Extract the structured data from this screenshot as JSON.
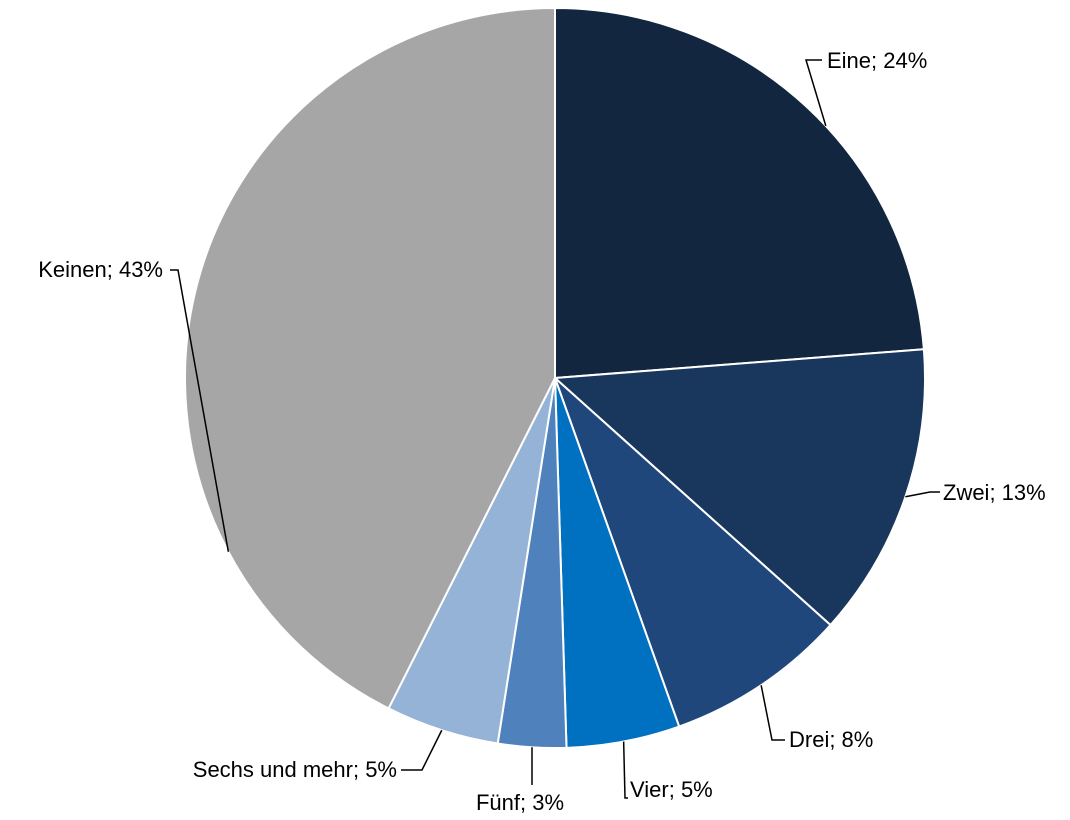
{
  "chart_data": {
    "type": "pie",
    "title": "",
    "separator": "; ",
    "slices": [
      {
        "label": "Eine",
        "value": 24,
        "display": "24%",
        "color": "#13263f"
      },
      {
        "label": "Zwei",
        "value": 13,
        "display": "13%",
        "color": "#19365c"
      },
      {
        "label": "Drei",
        "value": 8,
        "display": "8%",
        "color": "#20477b"
      },
      {
        "label": "Vier",
        "value": 5,
        "display": "5%",
        "color": "#0070c0"
      },
      {
        "label": "Fünf",
        "value": 3,
        "display": "3%",
        "color": "#4f81bd"
      },
      {
        "label": "Sechs und mehr",
        "value": 5,
        "display": "5%",
        "color": "#95b3d7"
      },
      {
        "label": "Keinen",
        "value": 43,
        "display": "43%",
        "color": "#a6a6a6"
      }
    ],
    "start_angle": "12 o'clock",
    "direction": "clockwise",
    "legend": "none",
    "data_labels": "outside with leader lines"
  }
}
